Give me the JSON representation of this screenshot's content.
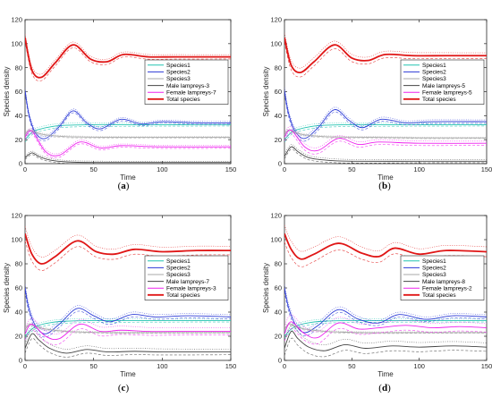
{
  "colors": {
    "species1": "#22c3b0",
    "species2": "#2b3ad6",
    "species3": "#a8a8a8",
    "male": "#444444",
    "female": "#ee22ee",
    "total": "#e01616"
  },
  "chart_data": [
    {
      "type": "line",
      "panel_label_prefix": "(",
      "panel_letter": "a",
      "panel_label_suffix": ")",
      "xlabel": "Time",
      "ylabel": "Species density",
      "xlim": [
        0,
        150
      ],
      "ylim": [
        0,
        120
      ],
      "xticks": [
        "0",
        "50",
        "100",
        "150"
      ],
      "yticks": [
        "0",
        "20",
        "40",
        "60",
        "80",
        "100",
        "120"
      ],
      "legend_position": "center-right",
      "variant_styles": [
        "solid",
        "dashed",
        "dotted"
      ],
      "series": [
        {
          "name": "Species1",
          "key": "species1",
          "x": [
            0,
            5,
            10,
            20,
            30,
            50,
            70,
            100,
            150
          ],
          "y": [
            20,
            26,
            28.5,
            31,
            32,
            32.5,
            32.5,
            32.5,
            32.5
          ],
          "alt_offsets": [
            -2,
            2
          ]
        },
        {
          "name": "Species2",
          "key": "species2",
          "x": [
            0,
            3,
            8,
            15,
            25,
            35,
            45,
            55,
            70,
            85,
            100,
            125,
            150
          ],
          "y": [
            61,
            40,
            25,
            21,
            31,
            44,
            34,
            29,
            37,
            33,
            35,
            34,
            34
          ],
          "alt_offsets": [
            -2,
            2
          ]
        },
        {
          "name": "Species3",
          "key": "species3",
          "x": [
            0,
            3,
            8,
            15,
            30,
            60,
            100,
            150
          ],
          "y": [
            24,
            28,
            26,
            24,
            22.5,
            22,
            22,
            22
          ],
          "alt_offsets": [
            -1,
            1
          ]
        },
        {
          "name": "Male lampreys-3",
          "key": "male",
          "x": [
            0,
            5,
            10,
            18,
            30,
            50,
            100,
            150
          ],
          "y": [
            5,
            9,
            6,
            3,
            1.5,
            1,
            1,
            1
          ],
          "alt_offsets": [
            -1.5,
            1.5
          ]
        },
        {
          "name": "Female lampreys-7",
          "key": "female",
          "x": [
            0,
            5,
            15,
            25,
            40,
            55,
            70,
            100,
            150
          ],
          "y": [
            22,
            27,
            10,
            7,
            18,
            13,
            15,
            14,
            14
          ],
          "alt_offsets": [
            -2,
            2
          ]
        },
        {
          "name": "Total species",
          "key": "total",
          "x": [
            0,
            5,
            12,
            22,
            35,
            48,
            60,
            72,
            90,
            110,
            150
          ],
          "y": [
            105,
            78,
            72,
            84,
            99,
            87,
            85,
            91,
            89,
            89,
            89
          ],
          "alt_offsets": [
            -3,
            3
          ]
        }
      ]
    },
    {
      "type": "line",
      "panel_label_prefix": "(",
      "panel_letter": "b",
      "panel_label_suffix": ")",
      "xlabel": "Time",
      "ylabel": "Species density",
      "xlim": [
        0,
        150
      ],
      "ylim": [
        0,
        120
      ],
      "xticks": [
        "0",
        "50",
        "100",
        "150"
      ],
      "yticks": [
        "0",
        "20",
        "40",
        "60",
        "80",
        "100",
        "120"
      ],
      "legend_position": "center-right",
      "variant_styles": [
        "solid",
        "dashed",
        "dotted"
      ],
      "series": [
        {
          "name": "Species1",
          "key": "species1",
          "x": [
            0,
            5,
            10,
            20,
            30,
            50,
            70,
            100,
            150
          ],
          "y": [
            20,
            26,
            28.5,
            31,
            32,
            32.5,
            32.5,
            32.5,
            32.5
          ],
          "alt_offsets": [
            -2,
            2
          ]
        },
        {
          "name": "Species2",
          "key": "species2",
          "x": [
            0,
            3,
            8,
            15,
            25,
            37,
            48,
            58,
            72,
            90,
            110,
            150
          ],
          "y": [
            61,
            42,
            27,
            21,
            30,
            45,
            36,
            30,
            37,
            34,
            35,
            35
          ],
          "alt_offsets": [
            -2.5,
            2.5
          ]
        },
        {
          "name": "Species3",
          "key": "species3",
          "x": [
            0,
            3,
            8,
            15,
            30,
            60,
            100,
            150
          ],
          "y": [
            24,
            28,
            26,
            24,
            22.5,
            22,
            21.5,
            21.5
          ],
          "alt_offsets": [
            -1,
            1
          ]
        },
        {
          "name": "Male lampreys-5",
          "key": "male",
          "x": [
            0,
            5,
            10,
            18,
            30,
            50,
            100,
            150
          ],
          "y": [
            6,
            14,
            10,
            5,
            3,
            2,
            2,
            2
          ],
          "alt_offsets": [
            -2,
            2
          ]
        },
        {
          "name": "Female lampreys-5",
          "key": "female",
          "x": [
            0,
            5,
            15,
            25,
            40,
            55,
            70,
            100,
            150
          ],
          "y": [
            22,
            28,
            14,
            11,
            21,
            16,
            18,
            17,
            17
          ],
          "alt_offsets": [
            -3,
            3
          ]
        },
        {
          "name": "Total species",
          "key": "total",
          "x": [
            0,
            5,
            12,
            22,
            37,
            50,
            62,
            75,
            95,
            120,
            150
          ],
          "y": [
            105,
            82,
            76,
            85,
            99,
            88,
            86,
            91,
            90,
            90,
            90
          ],
          "alt_offsets": [
            -4,
            4
          ]
        }
      ]
    },
    {
      "type": "line",
      "panel_label_prefix": "(",
      "panel_letter": "c",
      "panel_label_suffix": ")",
      "xlabel": "Time",
      "ylabel": "Species density",
      "xlim": [
        0,
        150
      ],
      "ylim": [
        0,
        120
      ],
      "xticks": [
        "0",
        "50",
        "100",
        "150"
      ],
      "yticks": [
        "0",
        "20",
        "40",
        "60",
        "80",
        "100",
        "120"
      ],
      "legend_position": "center-right",
      "variant_styles": [
        "solid",
        "dashed",
        "dotted"
      ],
      "series": [
        {
          "name": "Species1",
          "key": "species1",
          "x": [
            0,
            5,
            10,
            20,
            30,
            50,
            70,
            100,
            150
          ],
          "y": [
            20,
            26,
            29,
            31.5,
            32.5,
            33,
            33,
            33,
            33
          ],
          "alt_offsets": [
            -2,
            2
          ]
        },
        {
          "name": "Species2",
          "key": "species2",
          "x": [
            0,
            3,
            8,
            15,
            25,
            38,
            50,
            62,
            78,
            95,
            120,
            150
          ],
          "y": [
            60,
            42,
            28,
            22,
            30,
            43,
            37,
            32,
            38,
            36,
            37,
            36
          ],
          "alt_offsets": [
            -3,
            3
          ]
        },
        {
          "name": "Species3",
          "key": "species3",
          "x": [
            0,
            3,
            8,
            15,
            30,
            60,
            100,
            150
          ],
          "y": [
            25,
            30,
            28,
            26,
            24,
            23,
            23,
            23
          ],
          "alt_offsets": [
            -1,
            1
          ]
        },
        {
          "name": "Male lampreys-7",
          "key": "male",
          "x": [
            0,
            5,
            10,
            18,
            30,
            45,
            60,
            80,
            100,
            150
          ],
          "y": [
            10,
            22,
            17,
            10,
            6,
            9,
            7,
            7.5,
            7,
            7
          ],
          "alt_offsets": [
            -4,
            4
          ]
        },
        {
          "name": "Female lampreys-3",
          "key": "female",
          "x": [
            0,
            5,
            15,
            25,
            40,
            55,
            70,
            90,
            110,
            150
          ],
          "y": [
            22,
            30,
            20,
            18,
            30,
            24,
            25,
            24,
            24,
            24
          ],
          "alt_offsets": [
            -5,
            5
          ]
        },
        {
          "name": "Total species",
          "key": "total",
          "x": [
            0,
            5,
            12,
            22,
            38,
            52,
            65,
            80,
            100,
            125,
            150
          ],
          "y": [
            105,
            88,
            80,
            86,
            99,
            90,
            88,
            92,
            90,
            91,
            91
          ],
          "alt_offsets": [
            -6,
            6
          ]
        }
      ]
    },
    {
      "type": "line",
      "panel_label_prefix": "(",
      "panel_letter": "d",
      "panel_label_suffix": ")",
      "xlabel": "Time",
      "ylabel": "Species density",
      "xlim": [
        0,
        150
      ],
      "ylim": [
        0,
        120
      ],
      "xticks": [
        "0",
        "50",
        "100",
        "150"
      ],
      "yticks": [
        "0",
        "20",
        "40",
        "60",
        "80",
        "100",
        "120"
      ],
      "legend_position": "center-right",
      "variant_styles": [
        "solid",
        "dashed",
        "dotted"
      ],
      "series": [
        {
          "name": "Species1",
          "key": "species1",
          "x": [
            0,
            5,
            10,
            20,
            30,
            50,
            70,
            100,
            150
          ],
          "y": [
            20,
            26,
            29,
            31.5,
            32.5,
            33,
            33,
            33,
            33
          ],
          "alt_offsets": [
            -2,
            2
          ]
        },
        {
          "name": "Species2",
          "key": "species2",
          "x": [
            0,
            3,
            8,
            15,
            25,
            40,
            55,
            70,
            85,
            105,
            125,
            150
          ],
          "y": [
            60,
            44,
            30,
            23,
            29,
            42,
            34,
            31,
            38,
            34,
            37,
            36
          ],
          "alt_offsets": [
            -3,
            3
          ]
        },
        {
          "name": "Species3",
          "key": "species3",
          "x": [
            0,
            3,
            8,
            15,
            30,
            60,
            100,
            150
          ],
          "y": [
            25,
            30,
            28,
            26,
            24,
            23,
            23,
            23
          ],
          "alt_offsets": [
            -1,
            1
          ]
        },
        {
          "name": "Male lampreys-8",
          "key": "male",
          "x": [
            0,
            5,
            10,
            18,
            30,
            45,
            60,
            80,
            100,
            125,
            150
          ],
          "y": [
            10,
            24,
            18,
            11,
            8,
            13,
            10,
            12,
            11,
            12,
            11
          ],
          "alt_offsets": [
            -6,
            6
          ]
        },
        {
          "name": "Female lampreys-2",
          "key": "female",
          "x": [
            0,
            5,
            15,
            25,
            40,
            55,
            70,
            90,
            110,
            130,
            150
          ],
          "y": [
            22,
            32,
            22,
            19,
            31,
            26,
            27,
            29,
            27,
            28,
            27
          ],
          "alt_offsets": [
            -6,
            6
          ]
        },
        {
          "name": "Total species",
          "key": "total",
          "x": [
            0,
            5,
            12,
            22,
            40,
            57,
            70,
            82,
            100,
            120,
            150
          ],
          "y": [
            105,
            92,
            84,
            88,
            97,
            89,
            86,
            93,
            88,
            91,
            90
          ],
          "alt_offsets": [
            -7,
            7
          ]
        }
      ]
    }
  ]
}
